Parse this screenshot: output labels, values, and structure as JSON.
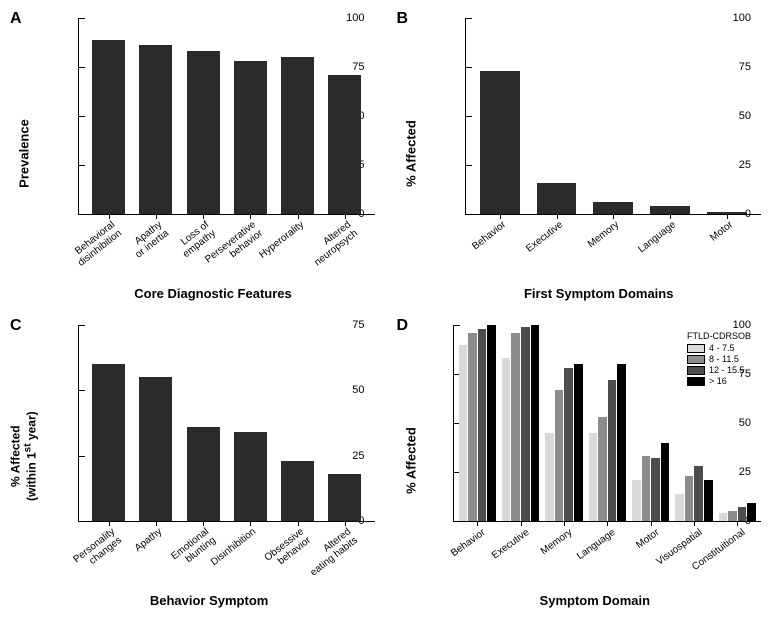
{
  "background_color": "#ffffff",
  "bar_color": "#2b2b2b",
  "panels": {
    "A": {
      "letter": "A",
      "type": "bar",
      "y_label": "Prevalence",
      "x_label": "Core Diagnostic Features",
      "ylim": [
        0,
        100
      ],
      "ytick_step": 25,
      "categories": [
        "Behavioral disinhibition",
        "Apathy or inertia",
        "Loss of empathy",
        "Perseverative behavior",
        "Hyperorality",
        "Altered neuropsych"
      ],
      "values": [
        89,
        86,
        83,
        78,
        80,
        71
      ],
      "bar_color": "#2b2b2b",
      "label_fontsize": 13,
      "tick_fontsize": 10
    },
    "B": {
      "letter": "B",
      "type": "bar",
      "y_label": "% Affected",
      "x_label": "First Symptom Domains",
      "ylim": [
        0,
        100
      ],
      "ytick_step": 25,
      "categories": [
        "Behavior",
        "Executive",
        "Memory",
        "Language",
        "Motor"
      ],
      "values": [
        73,
        16,
        6,
        4,
        1
      ],
      "bar_color": "#2b2b2b",
      "label_fontsize": 13,
      "tick_fontsize": 10
    },
    "C": {
      "letter": "C",
      "type": "bar",
      "y_label": "% Affected (within 1st year)",
      "y_label_html": "% Affected<br>(within 1<sup>st</sup> year)",
      "x_label": "Behavior Symptom",
      "ylim": [
        0,
        75
      ],
      "ytick_step": 25,
      "categories": [
        "Personality changes",
        "Apathy",
        "Emotional blunting",
        "Disinhibition",
        "Obsessive behavior",
        "Altered eating habits"
      ],
      "values": [
        60,
        55,
        36,
        34,
        23,
        18
      ],
      "bar_color": "#2b2b2b",
      "label_fontsize": 12,
      "tick_fontsize": 10
    },
    "D": {
      "letter": "D",
      "type": "grouped-bar",
      "y_label": "% Affected",
      "x_label": "Symptom Domain",
      "ylim": [
        0,
        100
      ],
      "ytick_step": 25,
      "categories": [
        "Behavior",
        "Executive",
        "Memory",
        "Language",
        "Motor",
        "Visuospatial",
        "Constituitional"
      ],
      "legend_title": "FTLD-CDRSOB",
      "groups": [
        "4 - 7.5",
        "8 - 11.5",
        "12 - 15.5",
        "> 16"
      ],
      "group_colors": [
        "#d9d9d9",
        "#8c8c8c",
        "#4d4d4d",
        "#000000"
      ],
      "series": [
        [
          90,
          83,
          45,
          45,
          21,
          14,
          4
        ],
        [
          96,
          96,
          67,
          53,
          33,
          23,
          5
        ],
        [
          98,
          99,
          78,
          72,
          32,
          28,
          7
        ],
        [
          100,
          100,
          80,
          80,
          40,
          21,
          9
        ]
      ],
      "label_fontsize": 13,
      "tick_fontsize": 10
    }
  }
}
